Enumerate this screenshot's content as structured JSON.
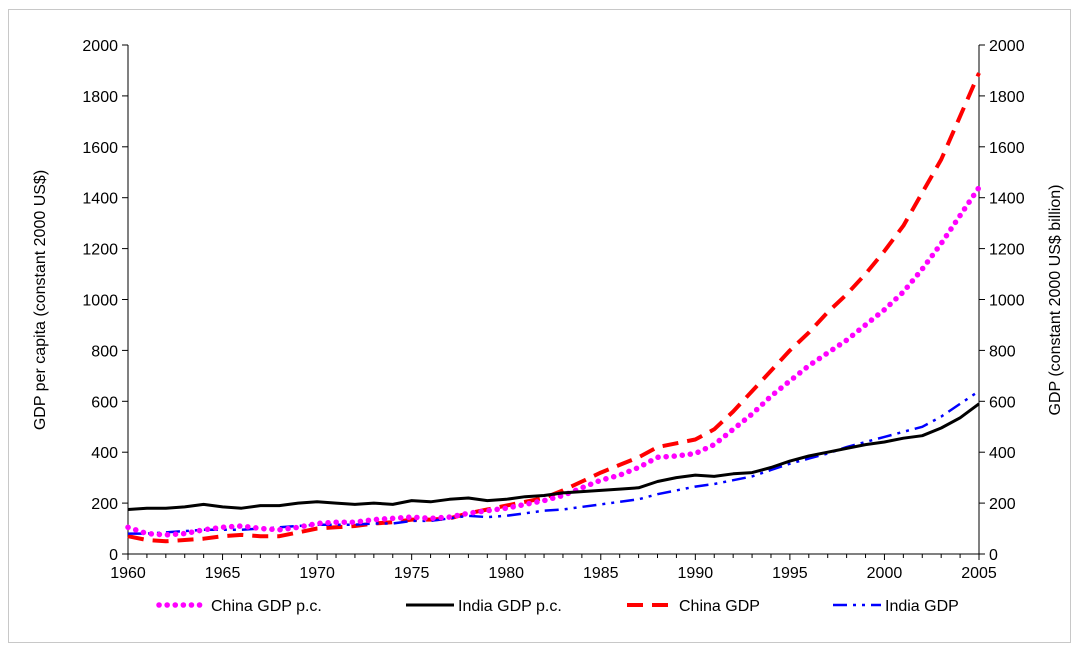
{
  "chart_data": {
    "type": "line",
    "title": "",
    "xlabel": "",
    "ylabel_left": "GDP per capita (constant 2000 US$)",
    "ylabel_right": "GDP (constant 2000 US$ billion)",
    "xlim": [
      1960,
      2005
    ],
    "ylim_left": [
      0,
      2000
    ],
    "ylim_right": [
      0,
      2000
    ],
    "x_ticks": [
      1960,
      1965,
      1970,
      1975,
      1980,
      1985,
      1990,
      1995,
      2000,
      2005
    ],
    "y_ticks": [
      0,
      200,
      400,
      600,
      800,
      1000,
      1200,
      1400,
      1600,
      1800,
      2000
    ],
    "grid": false,
    "legend_position": "bottom",
    "x": [
      1960,
      1961,
      1962,
      1963,
      1964,
      1965,
      1966,
      1967,
      1968,
      1969,
      1970,
      1971,
      1972,
      1973,
      1974,
      1975,
      1976,
      1977,
      1978,
      1979,
      1980,
      1981,
      1982,
      1983,
      1984,
      1985,
      1986,
      1987,
      1988,
      1989,
      1990,
      1991,
      1992,
      1993,
      1994,
      1995,
      1996,
      1997,
      1998,
      1999,
      2000,
      2001,
      2002,
      2003,
      2004,
      2005
    ],
    "series": [
      {
        "name": "China GDP p.c.",
        "axis": "left",
        "color": "#ff00ff",
        "style": "dotted",
        "values": [
          105,
          80,
          75,
          80,
          95,
          105,
          110,
          100,
          95,
          105,
          120,
          125,
          125,
          135,
          140,
          145,
          140,
          145,
          160,
          170,
          180,
          195,
          210,
          230,
          260,
          290,
          310,
          340,
          380,
          385,
          395,
          430,
          490,
          550,
          620,
          680,
          740,
          790,
          840,
          900,
          960,
          1030,
          1120,
          1220,
          1330,
          1440
        ]
      },
      {
        "name": "India GDP p.c.",
        "axis": "left",
        "color": "#000000",
        "style": "solid",
        "values": [
          175,
          180,
          180,
          185,
          195,
          185,
          180,
          190,
          190,
          200,
          205,
          200,
          195,
          200,
          195,
          210,
          205,
          215,
          220,
          210,
          215,
          225,
          230,
          240,
          245,
          250,
          255,
          260,
          285,
          300,
          310,
          305,
          315,
          320,
          340,
          365,
          385,
          400,
          415,
          430,
          440,
          455,
          465,
          495,
          535,
          590
        ]
      },
      {
        "name": "China GDP",
        "axis": "right",
        "color": "#ff0000",
        "style": "dashed",
        "values": [
          70,
          55,
          50,
          55,
          60,
          70,
          75,
          70,
          70,
          85,
          100,
          105,
          110,
          120,
          125,
          135,
          135,
          140,
          160,
          175,
          190,
          205,
          220,
          250,
          285,
          320,
          350,
          380,
          420,
          435,
          450,
          490,
          560,
          640,
          720,
          800,
          870,
          950,
          1020,
          1100,
          1190,
          1290,
          1420,
          1550,
          1720,
          1890
        ]
      },
      {
        "name": "India GDP",
        "axis": "right",
        "color": "#0000ff",
        "style": "dashdot",
        "values": [
          80,
          80,
          85,
          90,
          95,
          95,
          95,
          100,
          105,
          110,
          115,
          115,
          115,
          120,
          120,
          130,
          130,
          140,
          150,
          145,
          150,
          160,
          170,
          175,
          185,
          195,
          205,
          215,
          235,
          250,
          265,
          275,
          290,
          305,
          330,
          355,
          375,
          395,
          420,
          440,
          460,
          480,
          500,
          540,
          590,
          640
        ]
      }
    ]
  }
}
